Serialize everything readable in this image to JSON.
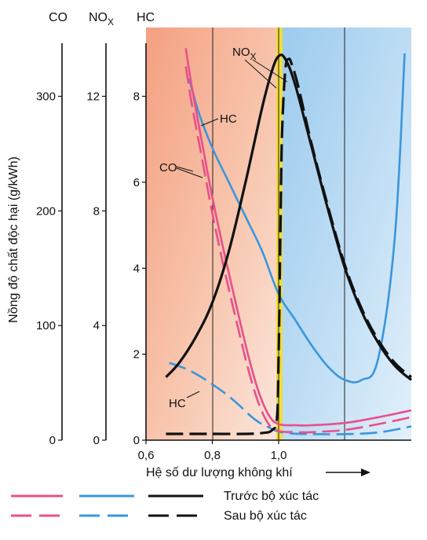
{
  "chart_data": {
    "type": "line",
    "xlabel": "Hệ số dư lượng không khí",
    "ylabel": "Nồng độ chất độc hại (g/kWh)",
    "x_ticks": [
      "0,6",
      "0,8",
      "1,0"
    ],
    "xlim": [
      0.6,
      1.4
    ],
    "axes": [
      {
        "name": "CO",
        "ticks": [
          "0",
          "100",
          "200",
          "300"
        ],
        "range": [
          0,
          360
        ]
      },
      {
        "name": "NOX",
        "ticks": [
          "0",
          "4",
          "8",
          "12"
        ],
        "range": [
          0,
          14.4
        ]
      },
      {
        "name": "HC",
        "ticks": [
          "0",
          "2",
          "4",
          "6",
          "8"
        ],
        "range": [
          0,
          9.6
        ]
      }
    ],
    "annotations": {
      "nox": "NOX",
      "hc_before": "HC",
      "co": "CO",
      "hc_after": "HC"
    },
    "legend": [
      {
        "label": "Trước bộ xúc tác",
        "style": "solid"
      },
      {
        "label": "Sau bộ xúc tác",
        "style": "dashed"
      }
    ],
    "series_colors": {
      "CO": "#e8508a",
      "HC": "#3a96dc",
      "NOX": "#111111"
    },
    "series": [
      {
        "pollutant": "HC",
        "stage": "before",
        "axis": "HC",
        "x": [
          0.73,
          0.76,
          0.8,
          0.85,
          0.9,
          0.95,
          1.0,
          1.05,
          1.1,
          1.15,
          1.2,
          1.25,
          1.3,
          1.35,
          1.38
        ],
        "y": [
          8.4,
          7.6,
          6.8,
          6.0,
          5.2,
          4.4,
          3.4,
          2.8,
          2.2,
          1.7,
          1.4,
          1.4,
          1.9,
          4.7,
          9.0
        ]
      },
      {
        "pollutant": "HC",
        "stage": "after",
        "axis": "HC",
        "x": [
          0.67,
          0.72,
          0.76,
          0.8,
          0.84,
          0.88,
          0.91,
          0.94,
          0.97,
          1.0,
          1.05,
          1.1,
          1.2,
          1.3,
          1.4
        ],
        "y": [
          1.8,
          1.66,
          1.5,
          1.3,
          1.08,
          0.82,
          0.6,
          0.42,
          0.3,
          0.2,
          0.15,
          0.14,
          0.14,
          0.18,
          0.32
        ]
      },
      {
        "pollutant": "CO",
        "stage": "before",
        "axis": "CO",
        "x": [
          0.72,
          0.74,
          0.77,
          0.8,
          0.84,
          0.88,
          0.91,
          0.94,
          0.97,
          1.0,
          1.05,
          1.1,
          1.2,
          1.3,
          1.4
        ],
        "y": [
          342,
          305,
          258,
          212,
          158,
          108,
          72,
          42,
          22,
          14,
          13,
          13,
          15,
          20,
          26
        ]
      },
      {
        "pollutant": "CO",
        "stage": "after",
        "axis": "CO",
        "x": [
          0.72,
          0.74,
          0.77,
          0.8,
          0.84,
          0.88,
          0.91,
          0.94,
          0.97,
          1.0,
          1.05,
          1.1,
          1.2,
          1.3,
          1.4
        ],
        "y": [
          326,
          290,
          244,
          198,
          144,
          95,
          60,
          32,
          14,
          8,
          7,
          7,
          9,
          14,
          20
        ]
      },
      {
        "pollutant": "NOX",
        "stage": "before",
        "axis": "NOX",
        "x": [
          0.66,
          0.7,
          0.75,
          0.8,
          0.85,
          0.9,
          0.95,
          0.98,
          1.0,
          1.02,
          1.05,
          1.1,
          1.15,
          1.2,
          1.25,
          1.3,
          1.35,
          1.4
        ],
        "y": [
          2.2,
          2.7,
          3.6,
          4.8,
          6.6,
          9.0,
          11.6,
          12.9,
          13.4,
          13.3,
          12.4,
          10.2,
          8.0,
          6.0,
          4.5,
          3.4,
          2.6,
          2.1
        ]
      },
      {
        "pollutant": "NOX",
        "stage": "after",
        "axis": "NOX",
        "x": [
          0.66,
          0.8,
          0.9,
          0.95,
          0.98,
          0.995,
          1.0,
          1.005,
          1.01,
          1.02,
          1.03,
          1.04,
          1.06,
          1.1,
          1.15,
          1.2,
          1.25,
          1.3,
          1.35,
          1.4
        ],
        "y": [
          0.22,
          0.22,
          0.22,
          0.25,
          0.35,
          0.8,
          3.0,
          7.0,
          10.6,
          12.9,
          13.3,
          13.1,
          12.3,
          10.3,
          8.1,
          6.1,
          4.6,
          3.5,
          2.7,
          2.2
        ]
      }
    ]
  },
  "colors": {
    "rich_zone": "#f4a98a",
    "lean_zone": "#a9d2ef",
    "stoich_band": "#f0dc3c"
  }
}
